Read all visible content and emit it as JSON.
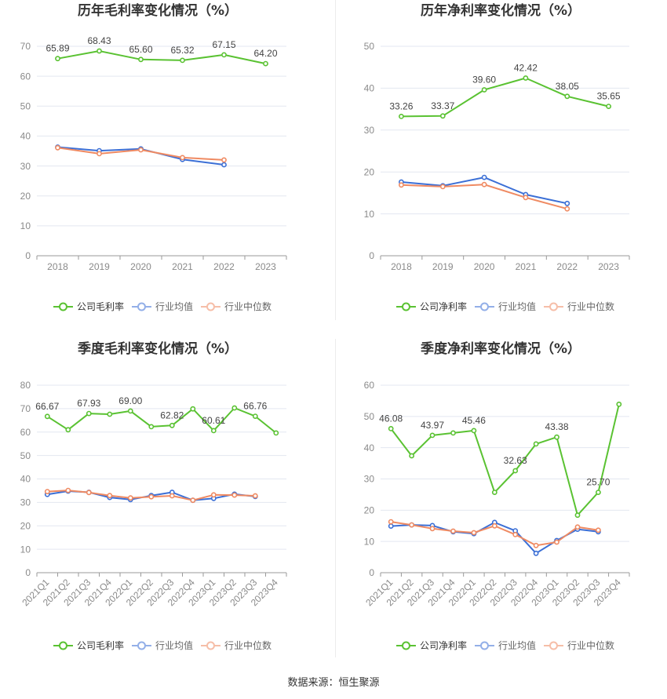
{
  "source_note": "数据来源：恒生聚源",
  "chart_data": [
    {
      "type": "line",
      "title": "历年毛利率变化情况（%）",
      "categories": [
        "2018",
        "2019",
        "2020",
        "2021",
        "2022",
        "2023"
      ],
      "ylim": [
        0,
        70
      ],
      "yticks": [
        0,
        10,
        20,
        30,
        40,
        50,
        60,
        70
      ],
      "grid": true,
      "legend_position": "bottom",
      "series": [
        {
          "name": "公司毛利率",
          "color": "#5ac232",
          "values": [
            65.89,
            68.43,
            65.6,
            65.32,
            67.15,
            64.2
          ],
          "data_labels": [
            "65.89",
            "68.43",
            "65.60",
            "65.32",
            "67.15",
            "64.20"
          ]
        },
        {
          "name": "行业均值",
          "color": "#3b6fd6",
          "values": [
            36.3,
            35.1,
            35.7,
            32.2,
            30.4,
            null
          ]
        },
        {
          "name": "行业中位数",
          "color": "#ef8a62",
          "values": [
            36.1,
            34.1,
            35.4,
            32.8,
            32.0,
            null
          ]
        }
      ]
    },
    {
      "type": "line",
      "title": "历年净利率变化情况（%）",
      "categories": [
        "2018",
        "2019",
        "2020",
        "2021",
        "2022",
        "2023"
      ],
      "ylim": [
        0,
        50
      ],
      "yticks": [
        0,
        10,
        20,
        30,
        40,
        50
      ],
      "grid": true,
      "legend_position": "bottom",
      "series": [
        {
          "name": "公司净利率",
          "color": "#5ac232",
          "values": [
            33.26,
            33.37,
            39.6,
            42.42,
            38.05,
            35.65
          ],
          "data_labels": [
            "33.26",
            "33.37",
            "39.60",
            "42.42",
            "38.05",
            "35.65"
          ]
        },
        {
          "name": "行业均值",
          "color": "#3b6fd6",
          "values": [
            17.6,
            16.7,
            18.7,
            14.6,
            12.5,
            null
          ]
        },
        {
          "name": "行业中位数",
          "color": "#ef8a62",
          "values": [
            16.9,
            16.5,
            17.0,
            13.9,
            11.2,
            null
          ]
        }
      ]
    },
    {
      "type": "line",
      "title": "季度毛利率变化情况（%）",
      "categories": [
        "2021Q1",
        "2021Q2",
        "2021Q3",
        "2021Q4",
        "2022Q1",
        "2022Q2",
        "2022Q3",
        "2022Q4",
        "2023Q1",
        "2023Q2",
        "2023Q3",
        "2023Q4"
      ],
      "ylim": [
        0,
        80
      ],
      "yticks": [
        0,
        10,
        20,
        30,
        40,
        50,
        60,
        70,
        80
      ],
      "grid": true,
      "legend_position": "bottom",
      "series": [
        {
          "name": "公司毛利率",
          "color": "#5ac232",
          "values": [
            66.67,
            61.0,
            67.93,
            67.6,
            69.0,
            62.3,
            62.82,
            69.9,
            60.61,
            70.3,
            66.76,
            59.6
          ],
          "data_labels": [
            "66.67",
            null,
            "67.93",
            null,
            "69.00",
            null,
            "62.82",
            null,
            "60.61",
            null,
            "66.76",
            null
          ]
        },
        {
          "name": "行业均值",
          "color": "#3b6fd6",
          "values": [
            33.4,
            34.8,
            34.3,
            32.1,
            31.2,
            32.9,
            34.3,
            30.9,
            31.7,
            33.5,
            32.5,
            null
          ]
        },
        {
          "name": "行业中位数",
          "color": "#ef8a62",
          "values": [
            34.6,
            35.1,
            34.2,
            32.9,
            31.9,
            32.4,
            32.8,
            30.9,
            33.2,
            33.1,
            32.8,
            null
          ]
        }
      ]
    },
    {
      "type": "line",
      "title": "季度净利率变化情况（%）",
      "categories": [
        "2021Q1",
        "2021Q2",
        "2021Q3",
        "2021Q4",
        "2022Q1",
        "2022Q2",
        "2022Q3",
        "2022Q4",
        "2023Q1",
        "2023Q2",
        "2023Q3",
        "2023Q4"
      ],
      "ylim": [
        0,
        60
      ],
      "yticks": [
        0,
        10,
        20,
        30,
        40,
        50,
        60
      ],
      "grid": true,
      "legend_position": "bottom",
      "series": [
        {
          "name": "公司净利率",
          "color": "#5ac232",
          "values": [
            46.08,
            37.4,
            43.97,
            44.7,
            45.46,
            25.7,
            32.63,
            41.2,
            43.38,
            18.4,
            25.7,
            53.9
          ],
          "data_labels": [
            "46.08",
            null,
            "43.97",
            null,
            "45.46",
            null,
            "32.63",
            null,
            "43.38",
            null,
            "25.70",
            null
          ]
        },
        {
          "name": "行业均值",
          "color": "#3b6fd6",
          "values": [
            14.9,
            15.3,
            15.1,
            13.1,
            12.5,
            16.1,
            13.4,
            6.2,
            10.3,
            13.9,
            13.1,
            null
          ]
        },
        {
          "name": "行业中位数",
          "color": "#ef8a62",
          "values": [
            16.3,
            15.3,
            14.1,
            13.3,
            12.8,
            15.0,
            12.2,
            8.7,
            9.8,
            14.6,
            13.6,
            null
          ]
        }
      ]
    }
  ]
}
